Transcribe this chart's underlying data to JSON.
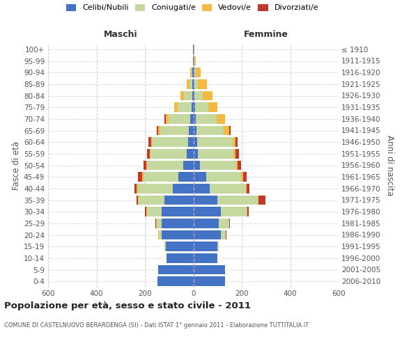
{
  "age_groups": [
    "0-4",
    "5-9",
    "10-14",
    "15-19",
    "20-24",
    "25-29",
    "30-34",
    "35-39",
    "40-44",
    "45-49",
    "50-54",
    "55-59",
    "60-64",
    "65-69",
    "70-74",
    "75-79",
    "80-84",
    "85-89",
    "90-94",
    "95-99",
    "100+"
  ],
  "birth_years": [
    "2006-2010",
    "2001-2005",
    "1996-2000",
    "1991-1995",
    "1986-1990",
    "1981-1985",
    "1976-1980",
    "1971-1975",
    "1966-1970",
    "1961-1965",
    "1956-1960",
    "1951-1955",
    "1946-1950",
    "1941-1945",
    "1936-1940",
    "1931-1935",
    "1926-1930",
    "1921-1925",
    "1916-1920",
    "1911-1915",
    "≤ 1910"
  ],
  "colors": {
    "celibi": "#4472c4",
    "coniugati": "#c5d8a0",
    "vedovi": "#f4b942",
    "divorziati": "#c0392b"
  },
  "maschi": {
    "celibi": [
      148,
      145,
      110,
      115,
      130,
      130,
      130,
      118,
      85,
      62,
      42,
      28,
      22,
      18,
      12,
      8,
      5,
      5,
      3,
      2,
      2
    ],
    "coniugati": [
      0,
      0,
      0,
      4,
      12,
      22,
      62,
      108,
      145,
      145,
      148,
      148,
      148,
      118,
      90,
      58,
      35,
      12,
      5,
      0,
      0
    ],
    "vedovi": [
      0,
      0,
      0,
      0,
      2,
      2,
      2,
      3,
      4,
      4,
      4,
      4,
      5,
      10,
      12,
      12,
      12,
      10,
      5,
      0,
      0
    ],
    "divorziati": [
      0,
      0,
      0,
      0,
      2,
      2,
      5,
      5,
      10,
      18,
      12,
      12,
      12,
      5,
      5,
      2,
      0,
      0,
      0,
      0,
      0
    ]
  },
  "femmine": {
    "celibi": [
      130,
      130,
      100,
      100,
      115,
      105,
      115,
      100,
      68,
      52,
      28,
      18,
      15,
      12,
      10,
      8,
      5,
      5,
      4,
      2,
      2
    ],
    "coniugati": [
      0,
      0,
      0,
      4,
      18,
      42,
      105,
      165,
      148,
      145,
      148,
      148,
      148,
      112,
      85,
      55,
      35,
      15,
      5,
      0,
      0
    ],
    "vedovi": [
      0,
      0,
      0,
      0,
      2,
      2,
      2,
      3,
      5,
      8,
      8,
      8,
      10,
      25,
      35,
      35,
      38,
      35,
      20,
      8,
      2
    ],
    "divorziati": [
      0,
      0,
      0,
      0,
      2,
      2,
      8,
      30,
      10,
      15,
      12,
      15,
      10,
      5,
      2,
      0,
      0,
      0,
      0,
      0,
      0
    ]
  },
  "xlim": 600,
  "title": "Popolazione per età, sesso e stato civile - 2011",
  "subtitle": "COMUNE DI CASTELNUOVO BERARDENGA (SI) - Dati ISTAT 1° gennaio 2011 - Elaborazione TUTTITALIA.IT",
  "ylabel_left": "Fasce di età",
  "ylabel_right": "Anni di nascita",
  "label_maschi": "Maschi",
  "label_femmine": "Femmine",
  "legend_labels": [
    "Celibi/Nubili",
    "Coniugati/e",
    "Vedovi/e",
    "Divorziati/e"
  ],
  "bg_color": "#ffffff",
  "grid_color": "#cccccc"
}
